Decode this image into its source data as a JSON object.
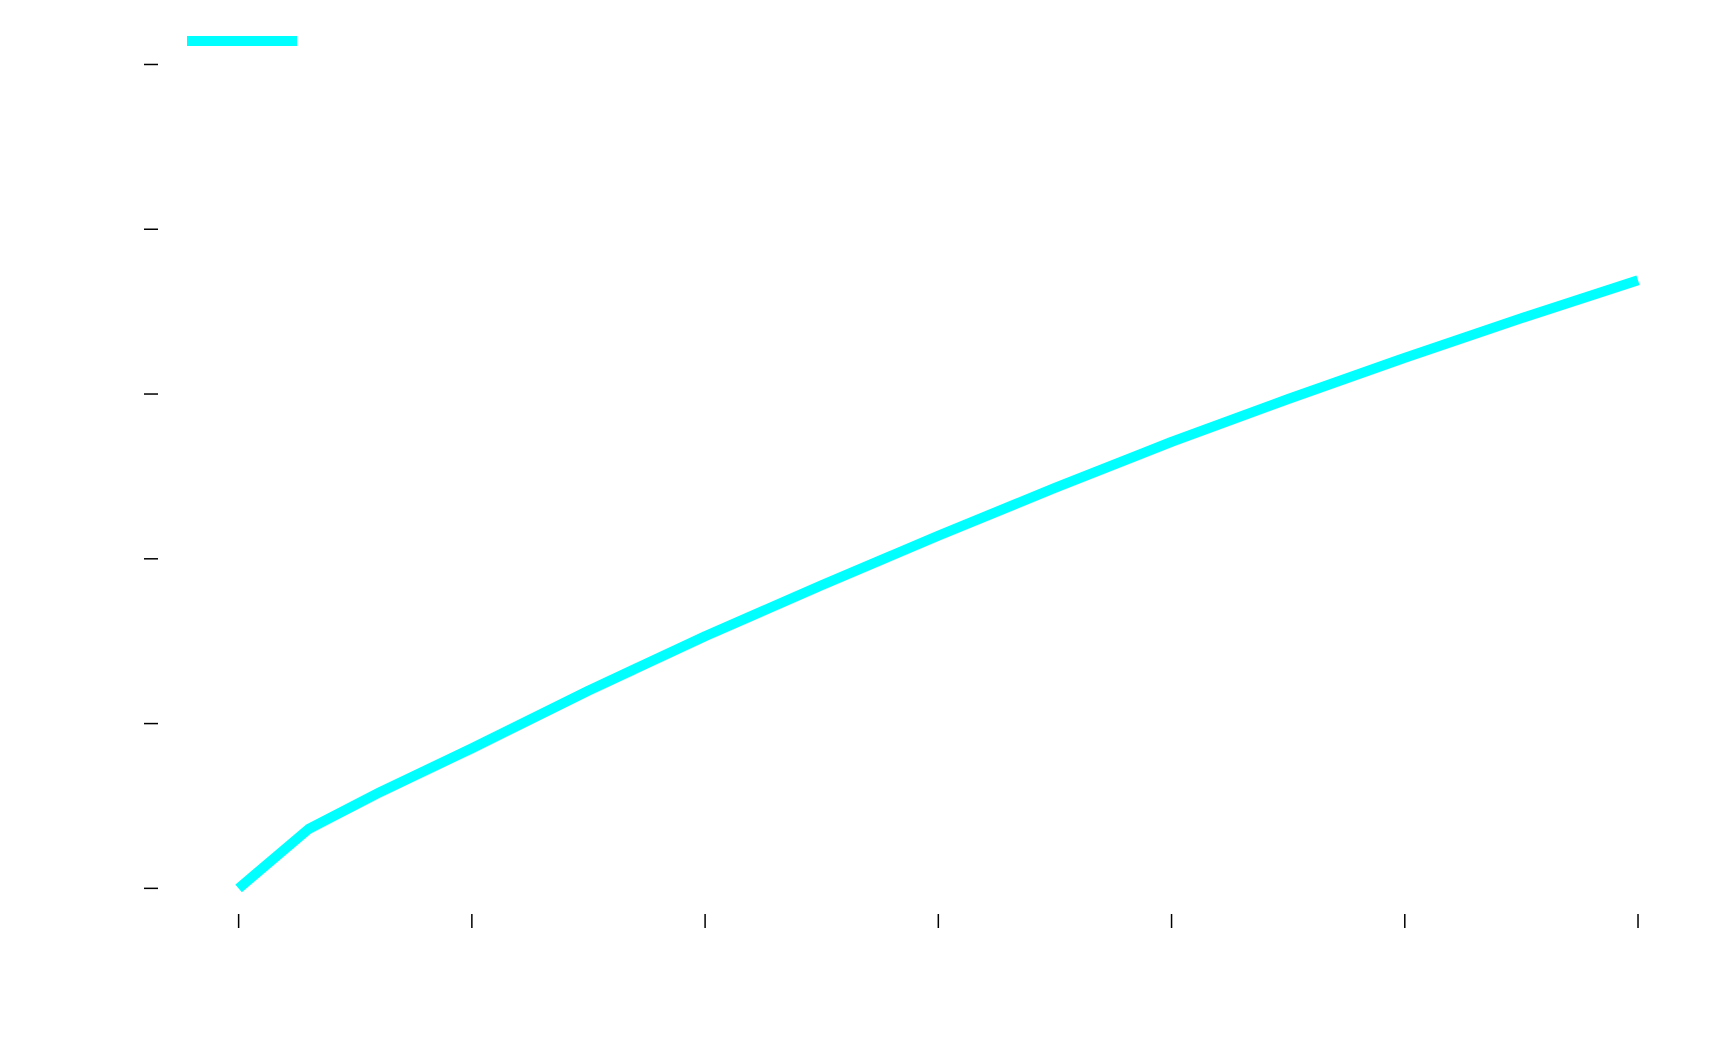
{
  "chart_data": {
    "type": "line",
    "title": "",
    "xlabel": "",
    "ylabel": "",
    "x_ticks": [
      0,
      0.5,
      1,
      1.5,
      2,
      2.5,
      3
    ],
    "y_ticks": [
      0,
      1,
      2,
      3,
      4,
      5
    ],
    "xlim": [
      -0.19,
      3.09
    ],
    "ylim": [
      -0.01,
      5.1
    ],
    "grid": false,
    "legend": {
      "placement": "top-left",
      "entries": [
        {
          "name": "",
          "color": "#00ffff"
        }
      ]
    },
    "series": [
      {
        "name": "",
        "color": "#00ffff",
        "x": [
          0,
          0.15,
          0.3,
          0.5,
          0.75,
          1.0,
          1.25,
          1.5,
          1.75,
          2.0,
          2.25,
          2.5,
          2.75,
          3.0
        ],
        "y": [
          0,
          0.36,
          0.58,
          0.85,
          1.2,
          1.53,
          1.84,
          2.14,
          2.43,
          2.71,
          2.97,
          3.22,
          3.46,
          3.69
        ]
      }
    ]
  }
}
